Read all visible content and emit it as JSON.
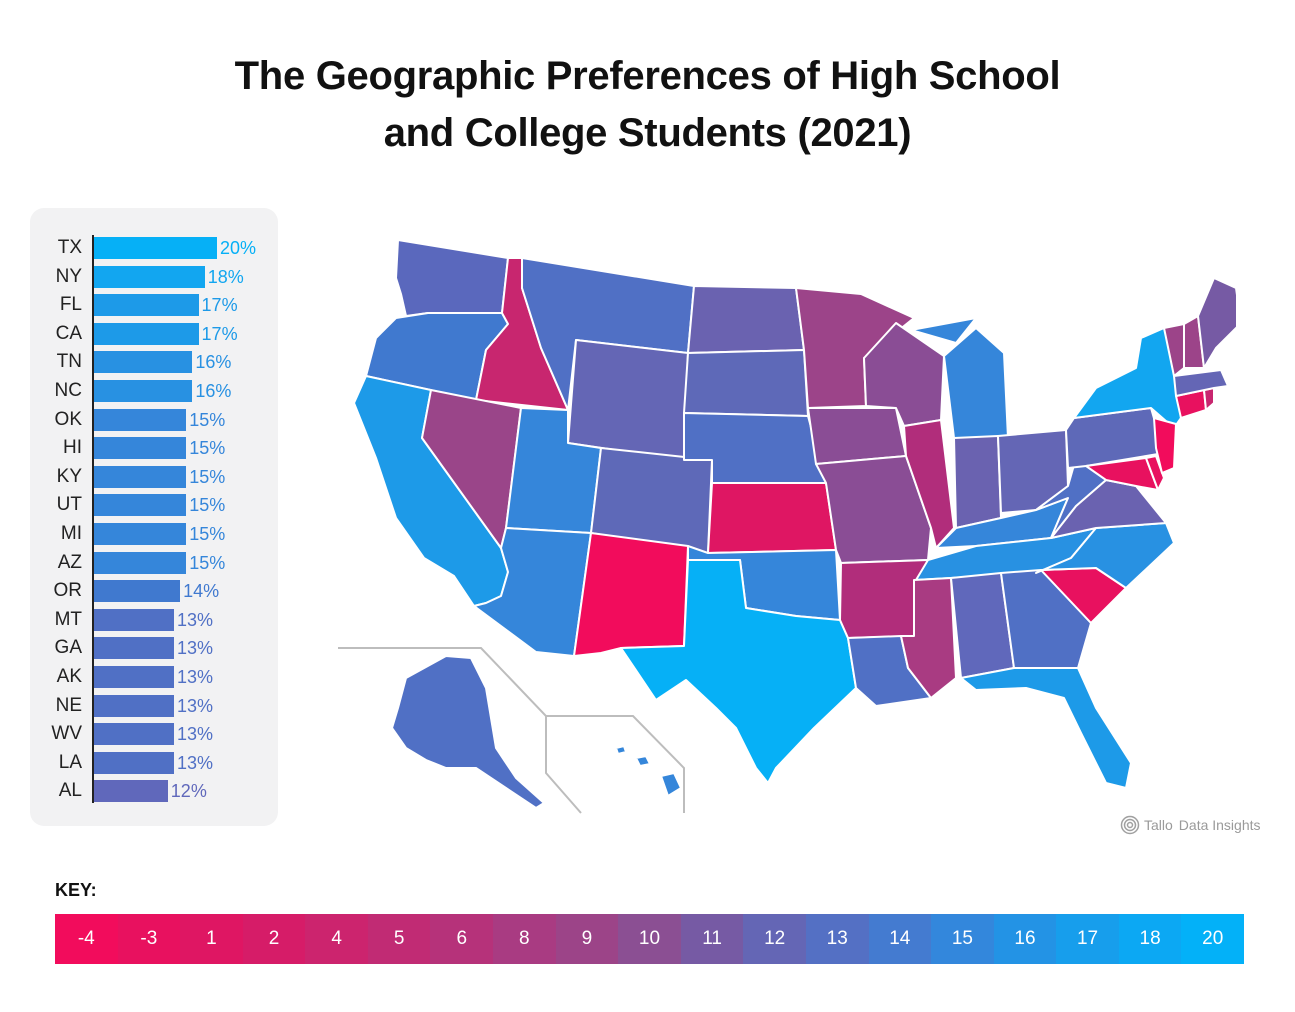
{
  "title_lines": [
    "The Geographic Preferences of High School",
    "and College Students (2021)"
  ],
  "ranking": [
    {
      "state": "TX",
      "percent": 20,
      "label": "20%",
      "color": "#06b0f6"
    },
    {
      "state": "NY",
      "percent": 18,
      "label": "18%",
      "color": "#12a6f0"
    },
    {
      "state": "FL",
      "percent": 17,
      "label": "17%",
      "color": "#1d9ae8"
    },
    {
      "state": "CA",
      "percent": 17,
      "label": "17%",
      "color": "#1d9ae8"
    },
    {
      "state": "TN",
      "percent": 16,
      "label": "16%",
      "color": "#2891e2"
    },
    {
      "state": "NC",
      "percent": 16,
      "label": "16%",
      "color": "#2891e2"
    },
    {
      "state": "OK",
      "percent": 15,
      "label": "15%",
      "color": "#3586da"
    },
    {
      "state": "HI",
      "percent": 15,
      "label": "15%",
      "color": "#3586da"
    },
    {
      "state": "KY",
      "percent": 15,
      "label": "15%",
      "color": "#3586da"
    },
    {
      "state": "UT",
      "percent": 15,
      "label": "15%",
      "color": "#3586da"
    },
    {
      "state": "MI",
      "percent": 15,
      "label": "15%",
      "color": "#3586da"
    },
    {
      "state": "AZ",
      "percent": 15,
      "label": "15%",
      "color": "#3586da"
    },
    {
      "state": "OR",
      "percent": 14,
      "label": "14%",
      "color": "#4079cf"
    },
    {
      "state": "MT",
      "percent": 13,
      "label": "13%",
      "color": "#5070c5"
    },
    {
      "state": "GA",
      "percent": 13,
      "label": "13%",
      "color": "#5070c5"
    },
    {
      "state": "AK",
      "percent": 13,
      "label": "13%",
      "color": "#5070c5"
    },
    {
      "state": "NE",
      "percent": 13,
      "label": "13%",
      "color": "#5070c5"
    },
    {
      "state": "WV",
      "percent": 13,
      "label": "13%",
      "color": "#5070c5"
    },
    {
      "state": "LA",
      "percent": 13,
      "label": "13%",
      "color": "#5070c5"
    },
    {
      "state": "AL",
      "percent": 12,
      "label": "12%",
      "color": "#6068bb"
    }
  ],
  "key": {
    "title": "KEY:",
    "values": [
      {
        "label": "-4",
        "color": "#f20c5c"
      },
      {
        "label": "-3",
        "color": "#e8115f"
      },
      {
        "label": "1",
        "color": "#df1663"
      },
      {
        "label": "2",
        "color": "#d61c68"
      },
      {
        "label": "4",
        "color": "#cc246e"
      },
      {
        "label": "5",
        "color": "#c12b74"
      },
      {
        "label": "6",
        "color": "#b6327a"
      },
      {
        "label": "8",
        "color": "#a93b82"
      },
      {
        "label": "9",
        "color": "#9c4488"
      },
      {
        "label": "10",
        "color": "#8b4f93"
      },
      {
        "label": "11",
        "color": "#765aa4"
      },
      {
        "label": "12",
        "color": "#6466b5"
      },
      {
        "label": "13",
        "color": "#5470c4"
      },
      {
        "label": "14",
        "color": "#447bd0"
      },
      {
        "label": "15",
        "color": "#3387dc"
      },
      {
        "label": "16",
        "color": "#2393e5"
      },
      {
        "label": "17",
        "color": "#179eec"
      },
      {
        "label": "18",
        "color": "#0ca8f3"
      },
      {
        "label": "20",
        "color": "#03b1f8"
      }
    ]
  },
  "brand": {
    "logo_text": "Tallo",
    "text": "Data Insights"
  }
}
